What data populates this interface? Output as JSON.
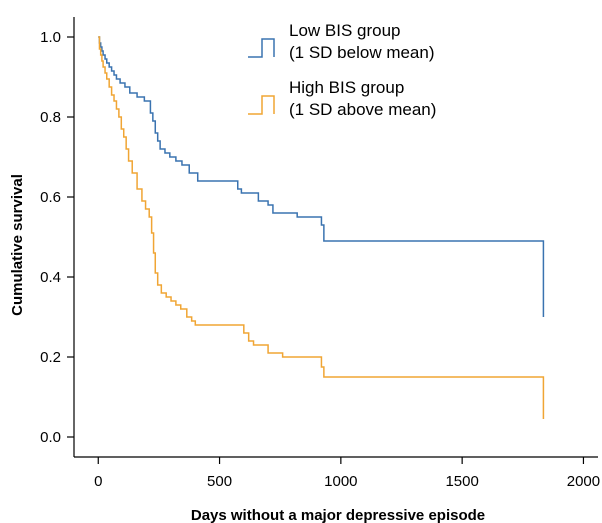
{
  "chart_data": {
    "type": "line",
    "step": true,
    "title": "",
    "xlabel": "Days without a major depressive episode",
    "ylabel": "Cumulative survival",
    "xlim": [
      -100,
      2060
    ],
    "ylim": [
      -0.05,
      1.05
    ],
    "x_ticks": [
      0,
      500,
      1000,
      1500,
      2000
    ],
    "y_ticks": [
      0.0,
      0.2,
      0.4,
      0.6,
      0.8,
      1.0
    ],
    "x_tick_labels": [
      "0",
      "500",
      "1000",
      "1500",
      "2000"
    ],
    "y_tick_labels": [
      "0.0",
      "0.2",
      "0.4",
      "0.6",
      "0.8",
      "1.0"
    ],
    "grid": false,
    "legend_position": "top-right",
    "series": [
      {
        "name": "Low BIS group",
        "name_line2": "(1 SD below mean)",
        "color": "#3a73b0",
        "x": [
          0,
          5,
          10,
          15,
          20,
          28,
          35,
          45,
          55,
          65,
          75,
          90,
          110,
          130,
          160,
          190,
          215,
          225,
          235,
          245,
          255,
          275,
          295,
          320,
          345,
          375,
          410,
          575,
          590,
          660,
          700,
          720,
          820,
          920,
          930,
          1835,
          1835
        ],
        "y": [
          1.0,
          0.985,
          0.975,
          0.965,
          0.955,
          0.945,
          0.935,
          0.925,
          0.915,
          0.905,
          0.895,
          0.885,
          0.875,
          0.86,
          0.85,
          0.84,
          0.81,
          0.79,
          0.76,
          0.74,
          0.72,
          0.71,
          0.7,
          0.69,
          0.68,
          0.66,
          0.64,
          0.62,
          0.61,
          0.59,
          0.58,
          0.56,
          0.55,
          0.53,
          0.49,
          0.49,
          0.3
        ]
      },
      {
        "name": "High BIS group",
        "name_line2": "(1 SD above mean)",
        "color": "#f0a534",
        "x": [
          0,
          5,
          10,
          15,
          20,
          28,
          35,
          45,
          55,
          65,
          75,
          85,
          95,
          105,
          115,
          125,
          140,
          160,
          180,
          195,
          210,
          220,
          228,
          235,
          245,
          260,
          280,
          300,
          320,
          340,
          365,
          385,
          400,
          585,
          600,
          620,
          640,
          700,
          760,
          920,
          930,
          1835,
          1835
        ],
        "y": [
          1.0,
          0.97,
          0.955,
          0.94,
          0.925,
          0.91,
          0.895,
          0.875,
          0.855,
          0.84,
          0.82,
          0.8,
          0.77,
          0.75,
          0.72,
          0.69,
          0.66,
          0.62,
          0.59,
          0.57,
          0.55,
          0.51,
          0.46,
          0.41,
          0.38,
          0.36,
          0.35,
          0.34,
          0.33,
          0.32,
          0.3,
          0.29,
          0.28,
          0.28,
          0.26,
          0.24,
          0.23,
          0.21,
          0.2,
          0.175,
          0.15,
          0.15,
          0.045
        ]
      }
    ]
  }
}
